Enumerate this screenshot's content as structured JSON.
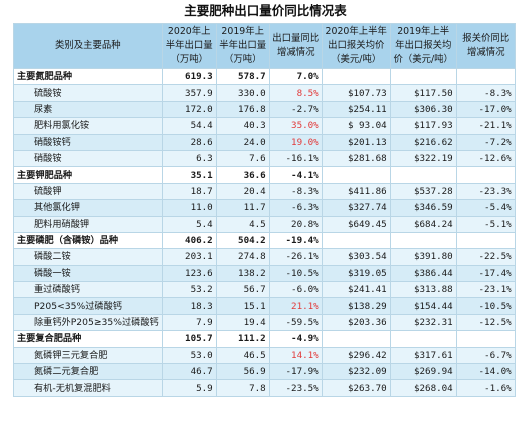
{
  "title": "主要肥种出口量价同比情况表",
  "headers": [
    "类别及主要品种",
    "2020年上半年出口量（万吨）",
    "2019年上半年出口量（万吨）",
    "出口量同比增减情况",
    "2020年上半年出口报关均价（美元/吨）",
    "2019年上半年出口报关均价（美元/吨）",
    "报关价同比增减情况"
  ],
  "rows": [
    {
      "type": "cat",
      "name": "主要氮肥品种",
      "q2020": "619.3",
      "q2019": "578.7",
      "qchg": "7.0%",
      "p2020": "",
      "p2019": "",
      "pchg": ""
    },
    {
      "type": "item",
      "name": "硫酸铵",
      "q2020": "357.9",
      "q2019": "330.0",
      "qchg": "8.5%",
      "qred": true,
      "p2020": "$107.73",
      "p2019": "$117.50",
      "pchg": "-8.3%"
    },
    {
      "type": "item",
      "name": "尿素",
      "q2020": "172.0",
      "q2019": "176.8",
      "qchg": "-2.7%",
      "p2020": "$254.11",
      "p2019": "$306.30",
      "pchg": "-17.0%"
    },
    {
      "type": "item",
      "name": "肥料用氯化铵",
      "q2020": "54.4",
      "q2019": "40.3",
      "qchg": "35.0%",
      "qred": true,
      "p2020": "$ 93.04",
      "p2019": "$117.93",
      "pchg": "-21.1%"
    },
    {
      "type": "item",
      "name": "硝酸铵钙",
      "q2020": "28.6",
      "q2019": "24.0",
      "qchg": "19.0%",
      "qred": true,
      "p2020": "$201.13",
      "p2019": "$216.62",
      "pchg": "-7.2%"
    },
    {
      "type": "item",
      "name": "硝酸铵",
      "q2020": "6.3",
      "q2019": "7.6",
      "qchg": "-16.1%",
      "p2020": "$281.68",
      "p2019": "$322.19",
      "pchg": "-12.6%"
    },
    {
      "type": "cat",
      "name": "主要钾肥品种",
      "q2020": "35.1",
      "q2019": "36.6",
      "qchg": "-4.1%",
      "p2020": "",
      "p2019": "",
      "pchg": ""
    },
    {
      "type": "item",
      "name": "硫酸钾",
      "q2020": "18.7",
      "q2019": "20.4",
      "qchg": "-8.3%",
      "p2020": "$411.86",
      "p2019": "$537.28",
      "pchg": "-23.3%"
    },
    {
      "type": "item",
      "name": "其他氯化钾",
      "q2020": "11.0",
      "q2019": "11.7",
      "qchg": "-6.3%",
      "p2020": "$327.74",
      "p2019": "$346.59",
      "pchg": "-5.4%"
    },
    {
      "type": "item",
      "name": "肥料用硝酸钾",
      "q2020": "5.4",
      "q2019": "4.5",
      "qchg": "20.8%",
      "p2020": "$649.45",
      "p2019": "$684.24",
      "pchg": "-5.1%"
    },
    {
      "type": "cat",
      "name": "主要磷肥（含磷铵）品种",
      "q2020": "406.2",
      "q2019": "504.2",
      "qchg": "-19.4%",
      "p2020": "",
      "p2019": "",
      "pchg": ""
    },
    {
      "type": "item",
      "name": "磷酸二铵",
      "q2020": "203.1",
      "q2019": "274.8",
      "qchg": "-26.1%",
      "p2020": "$303.54",
      "p2019": "$391.80",
      "pchg": "-22.5%"
    },
    {
      "type": "item",
      "name": "磷酸一铵",
      "q2020": "123.6",
      "q2019": "138.2",
      "qchg": "-10.5%",
      "p2020": "$319.05",
      "p2019": "$386.44",
      "pchg": "-17.4%"
    },
    {
      "type": "item",
      "name": "重过磷酸钙",
      "q2020": "53.2",
      "q2019": "56.7",
      "qchg": "-6.0%",
      "p2020": "$241.41",
      "p2019": "$313.88",
      "pchg": "-23.1%"
    },
    {
      "type": "item",
      "name": "P205<35%过磷酸钙",
      "q2020": "18.3",
      "q2019": "15.1",
      "qchg": "21.1%",
      "qred": true,
      "p2020": "$138.29",
      "p2019": "$154.44",
      "pchg": "-10.5%"
    },
    {
      "type": "item",
      "name": "除重钙外P205≥35%过磷酸钙",
      "small": true,
      "q2020": "7.9",
      "q2019": "19.4",
      "qchg": "-59.5%",
      "p2020": "$203.36",
      "p2019": "$232.31",
      "pchg": "-12.5%"
    },
    {
      "type": "cat",
      "name": "主要复合肥品种",
      "q2020": "105.7",
      "q2019": "111.2",
      "qchg": "-4.9%",
      "p2020": "",
      "p2019": "",
      "pchg": ""
    },
    {
      "type": "item",
      "name": "氮磷钾三元复合肥",
      "q2020": "53.0",
      "q2019": "46.5",
      "qchg": "14.1%",
      "qred": true,
      "p2020": "$296.42",
      "p2019": "$317.61",
      "pchg": "-6.7%"
    },
    {
      "type": "item",
      "name": "氮磷二元复合肥",
      "q2020": "46.7",
      "q2019": "56.9",
      "qchg": "-17.9%",
      "p2020": "$232.09",
      "p2019": "$269.94",
      "pchg": "-14.0%"
    },
    {
      "type": "item",
      "name": "有机-无机复混肥料",
      "q2020": "5.9",
      "q2019": "7.8",
      "qchg": "-23.5%",
      "p2020": "$263.70",
      "p2019": "$268.04",
      "pchg": "-1.6%"
    }
  ]
}
